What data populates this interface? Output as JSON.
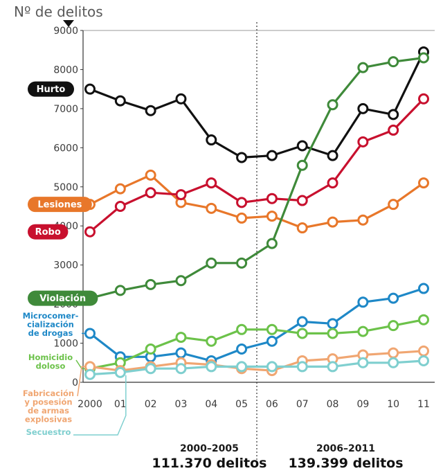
{
  "chart_data": {
    "type": "line",
    "ylabel": "Nº de delitos",
    "ylim": [
      0,
      9000
    ],
    "yticks": [
      0,
      1000,
      2000,
      3000,
      4000,
      5000,
      6000,
      7000,
      8000,
      9000
    ],
    "categories": [
      "2000",
      "01",
      "02",
      "03",
      "04",
      "05",
      "06",
      "07",
      "08",
      "09",
      "10",
      "11"
    ],
    "series": [
      {
        "name": "Hurto",
        "color": "#111111",
        "labelStyle": "pill",
        "values": [
          7500,
          7200,
          6950,
          7250,
          6200,
          5750,
          5800,
          6050,
          5800,
          7000,
          6850,
          8450
        ]
      },
      {
        "name": "Lesiones",
        "color": "#e8772a",
        "labelStyle": "pill",
        "values": [
          4550,
          4950,
          5300,
          4600,
          4450,
          4200,
          4250,
          3950,
          4100,
          4150,
          4550,
          5100
        ]
      },
      {
        "name": "Robo",
        "color": "#c8102e",
        "labelStyle": "pill",
        "values": [
          3850,
          4500,
          4850,
          4800,
          5100,
          4600,
          4700,
          4650,
          5100,
          6150,
          6450,
          7250
        ]
      },
      {
        "name": "Violación",
        "color": "#3f8a3a",
        "labelStyle": "pill",
        "values": [
          2150,
          2350,
          2500,
          2600,
          3050,
          3050,
          3550,
          5550,
          7100,
          8050,
          8200,
          8300
        ]
      },
      {
        "name": "Microcomercialización de drogas",
        "color": "#1e88c7",
        "labelStyle": "text",
        "labelLines": [
          "Microcomer-",
          "cialización",
          "de drogas"
        ],
        "values": [
          1250,
          650,
          650,
          750,
          550,
          850,
          1050,
          1550,
          1500,
          2050,
          2150,
          2400
        ]
      },
      {
        "name": "Homicidio doloso",
        "color": "#6cc24a",
        "labelStyle": "text",
        "labelLines": [
          "Homicidio",
          "doloso"
        ],
        "values": [
          350,
          500,
          850,
          1150,
          1050,
          1350,
          1350,
          1250,
          1250,
          1300,
          1450,
          1600
        ]
      },
      {
        "name": "Fabricación y posesión de armas explosivas",
        "color": "#f0a672",
        "labelStyle": "text",
        "labelLines": [
          "Fabricación",
          "y posesión",
          "de armas",
          "explosivas"
        ],
        "values": [
          400,
          300,
          400,
          500,
          450,
          350,
          300,
          550,
          600,
          700,
          750,
          800
        ]
      },
      {
        "name": "Secuestro",
        "color": "#7fcfcf",
        "labelStyle": "text",
        "labelLines": [
          "Secuestro"
        ],
        "values": [
          200,
          250,
          350,
          350,
          400,
          400,
          400,
          400,
          400,
          500,
          500,
          550
        ]
      }
    ],
    "annotations": [
      {
        "period": "2000–2005",
        "total": "111.370 delitos"
      },
      {
        "period": "2006–2011",
        "total": "139.399 delitos"
      }
    ],
    "grid": false
  }
}
